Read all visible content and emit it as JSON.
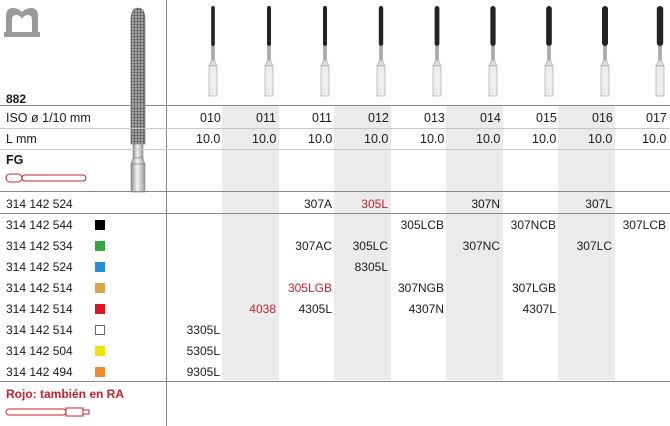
{
  "product": {
    "series": "882",
    "iso_label": "ISO ø 1/10 mm",
    "length_label": "L mm",
    "shank_label": "FG",
    "note": "Rojo: también en RA"
  },
  "columns": [
    {
      "iso": "010",
      "length": "10.0"
    },
    {
      "iso": "011",
      "length": "10.0"
    },
    {
      "iso": "011",
      "length": "10.0"
    },
    {
      "iso": "012",
      "length": "10.0"
    },
    {
      "iso": "013",
      "length": "10.0"
    },
    {
      "iso": "014",
      "length": "10.0"
    },
    {
      "iso": "015",
      "length": "10.0"
    },
    {
      "iso": "016",
      "length": "10.0"
    },
    {
      "iso": "017",
      "length": "10.0"
    }
  ],
  "rows": [
    {
      "ref": "314 142 524",
      "swatch": "none",
      "cells": [
        {
          "col": 2,
          "text": "307A",
          "color": "black"
        },
        {
          "col": 3,
          "text": "305L",
          "color": "red"
        },
        {
          "col": 5,
          "text": "307N",
          "color": "black"
        },
        {
          "col": 7,
          "text": "307L",
          "color": "black"
        }
      ]
    },
    {
      "ref": "314 142 544",
      "swatch": "#000000",
      "cells": [
        {
          "col": 4,
          "text": "305LCB",
          "color": "black"
        },
        {
          "col": 6,
          "text": "307NCB",
          "color": "black"
        },
        {
          "col": 8,
          "text": "307LCB",
          "color": "black"
        }
      ]
    },
    {
      "ref": "314 142 534",
      "swatch": "#2eaa3c",
      "cells": [
        {
          "col": 2,
          "text": "307AC",
          "color": "black"
        },
        {
          "col": 3,
          "text": "305LC",
          "color": "black"
        },
        {
          "col": 5,
          "text": "307NC",
          "color": "black"
        },
        {
          "col": 7,
          "text": "307LC",
          "color": "black"
        }
      ]
    },
    {
      "ref": "314 142 524",
      "swatch": "#1f8fd6",
      "cells": [
        {
          "col": 3,
          "text": "8305L",
          "color": "black"
        }
      ]
    },
    {
      "ref": "314 142 514",
      "swatch": "#d9a441",
      "cells": [
        {
          "col": 2,
          "text": "305LGB",
          "color": "red"
        },
        {
          "col": 4,
          "text": "307NGB",
          "color": "black"
        },
        {
          "col": 6,
          "text": "307LGB",
          "color": "black"
        }
      ]
    },
    {
      "ref": "314 142 514",
      "swatch": "#e0161f",
      "cells": [
        {
          "col": 1,
          "text": "4038",
          "color": "red"
        },
        {
          "col": 2,
          "text": "4305L",
          "color": "black"
        },
        {
          "col": 4,
          "text": "4307N",
          "color": "black"
        },
        {
          "col": 6,
          "text": "4307L",
          "color": "black"
        }
      ]
    },
    {
      "ref": "314 142 514",
      "swatch": "#ffffff",
      "cells": [
        {
          "col": 0,
          "text": "3305L",
          "color": "black"
        }
      ]
    },
    {
      "ref": "314 142 504",
      "swatch": "#f2e200",
      "cells": [
        {
          "col": 0,
          "text": "5305L",
          "color": "black"
        }
      ]
    },
    {
      "ref": "314 142 494",
      "swatch": "#f08a2c",
      "cells": [
        {
          "col": 0,
          "text": "9305L",
          "color": "black"
        }
      ]
    }
  ]
}
